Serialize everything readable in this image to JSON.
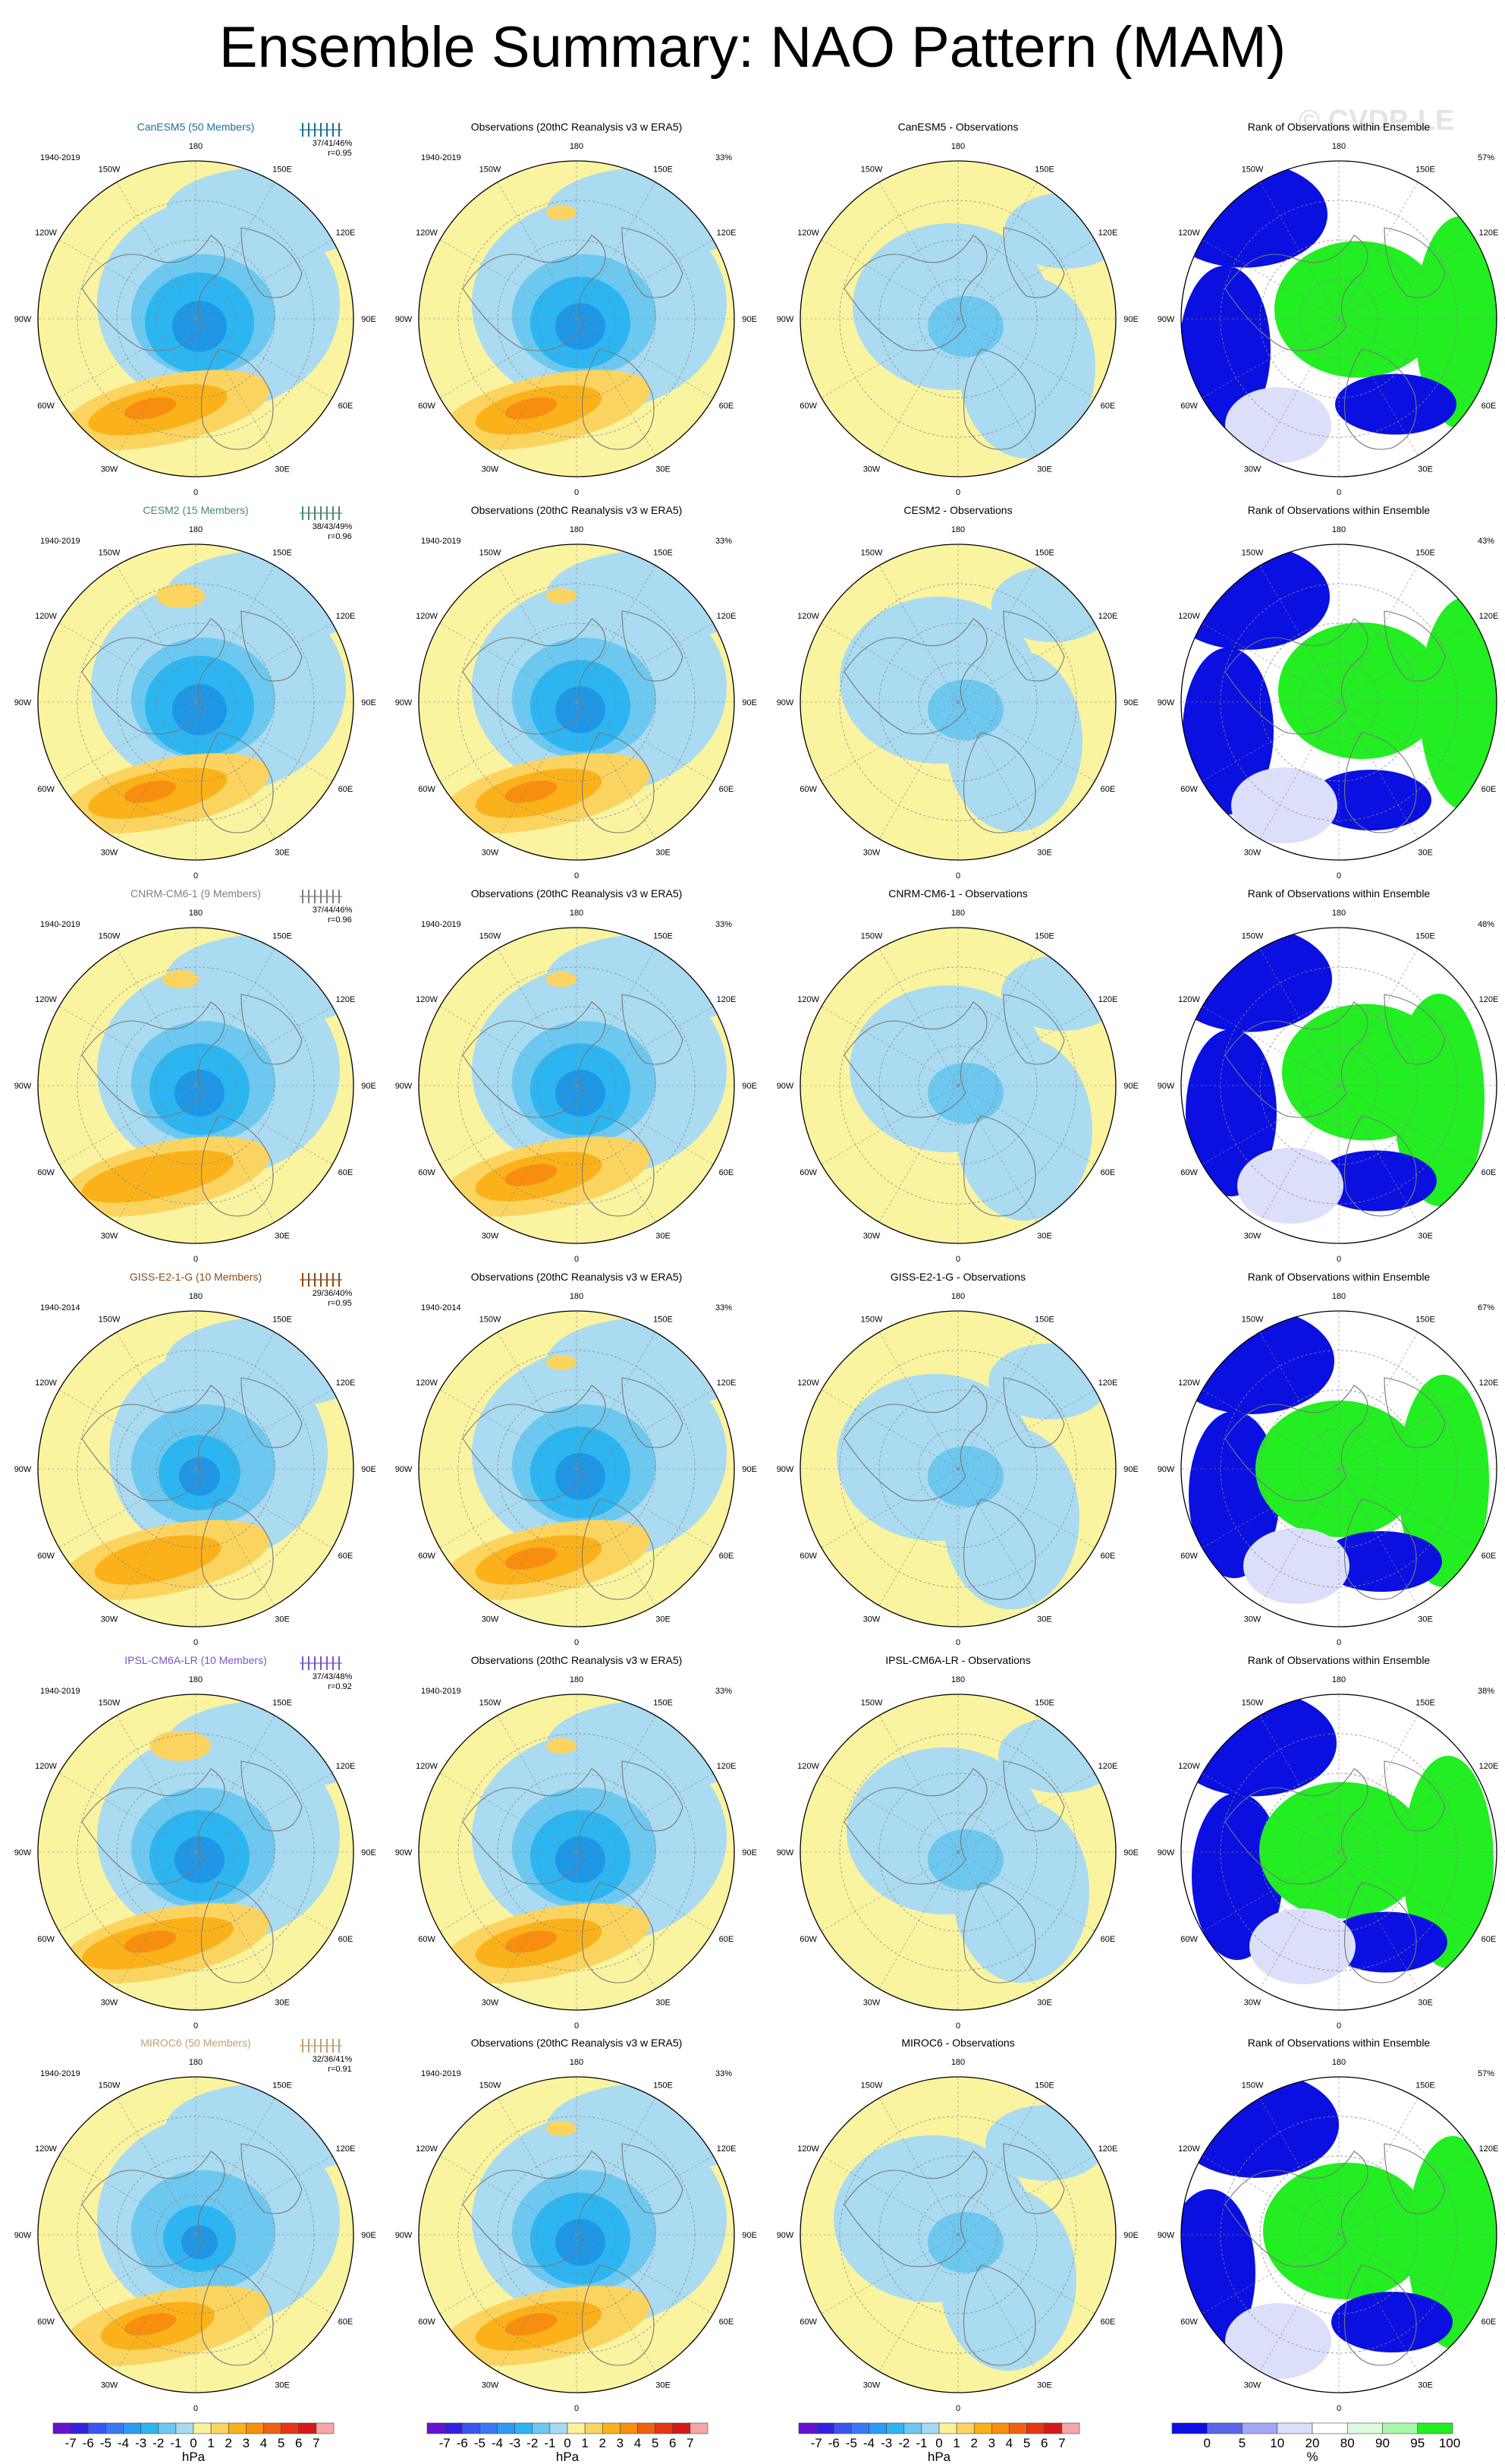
{
  "title": "Ensemble Summary: NAO Pattern (MAM)",
  "watermark": "© CVDP-LE",
  "lon_labels": [
    "180",
    "150E",
    "120E",
    "90E",
    "60E",
    "30E",
    "0",
    "30W",
    "60W",
    "90W",
    "120W",
    "150W"
  ],
  "obs_title": "Observations (20thC Reanalysis v3 w ERA5)",
  "obs_pct": "33%",
  "rows": [
    {
      "model": "CanESM5 (50 Members)",
      "color": "#1a7090",
      "period": "1940-2019",
      "stats": "37/41/46%",
      "r": "r=0.95",
      "diff_title": "CanESM5 - Observations",
      "rank_pct": "57%",
      "obs_period": "1940-2019"
    },
    {
      "model": "CESM2 (15 Members)",
      "color": "#4a8a68",
      "period": "1940-2019",
      "stats": "38/43/49%",
      "r": "r=0.96",
      "diff_title": "CESM2 - Observations",
      "rank_pct": "43%",
      "obs_period": "1940-2019"
    },
    {
      "model": "CNRM-CM6-1 (9 Members)",
      "color": "#808080",
      "period": "1940-2019",
      "stats": "37/44/46%",
      "r": "r=0.96",
      "diff_title": "CNRM-CM6-1 - Observations",
      "rank_pct": "48%",
      "obs_period": "1940-2019"
    },
    {
      "model": "GISS-E2-1-G (10 Members)",
      "color": "#8b4a1a",
      "period": "1940-2014",
      "stats": "29/36/40%",
      "r": "r=0.95",
      "diff_title": "GISS-E2-1-G - Observations",
      "rank_pct": "67%",
      "obs_period": "1940-2014"
    },
    {
      "model": "IPSL-CM6A-LR (10 Members)",
      "color": "#7a55c8",
      "period": "1940-2019",
      "stats": "37/43/48%",
      "r": "r=0.92",
      "diff_title": "IPSL-CM6A-LR - Observations",
      "rank_pct": "38%",
      "obs_period": "1940-2019"
    },
    {
      "model": "MIROC6 (50 Members)",
      "color": "#c0a070",
      "period": "1940-2019",
      "stats": "32/36/41%",
      "r": "r=0.91",
      "diff_title": "MIROC6 - Observations",
      "rank_pct": "57%",
      "obs_period": "1940-2019"
    }
  ],
  "rank_title": "Rank of Observations within Ensemble",
  "colorbar": {
    "labels": [
      "-7",
      "-6",
      "-5",
      "-4",
      "-3",
      "-2",
      "-1",
      "0",
      "1",
      "2",
      "3",
      "4",
      "5",
      "6",
      "7"
    ],
    "unit": "hPa",
    "colors": [
      "#6a10d0",
      "#3320e0",
      "#3a55f0",
      "#3a78f5",
      "#2a9cf6",
      "#2bb6f2",
      "#6cc8ef",
      "#a6dbef",
      "#fbf29a",
      "#fbd460",
      "#fbb21a",
      "#f88e0f",
      "#f06212",
      "#e63414",
      "#d61a18",
      "#f7a6a6"
    ]
  },
  "rank_colorbar": {
    "labels": [
      "0",
      "5",
      "10",
      "20",
      "80",
      "90",
      "95",
      "100"
    ],
    "unit": "%",
    "colors": [
      "#0a10e0",
      "#5a65ec",
      "#a2a8f4",
      "#dcdffa",
      "#ffffff",
      "#dcfadc",
      "#a8f8a8",
      "#22ee22"
    ]
  },
  "map_colors": {
    "ocean_yellow": "#faf4a0",
    "light_blue": "#aadbf0",
    "mid_blue": "#6cc8ef",
    "blue": "#2bb6f2",
    "deep_blue": "#1e96e6",
    "orange_light": "#fbd460",
    "orange": "#fbb21a",
    "orange_dark": "#f88e0f"
  }
}
